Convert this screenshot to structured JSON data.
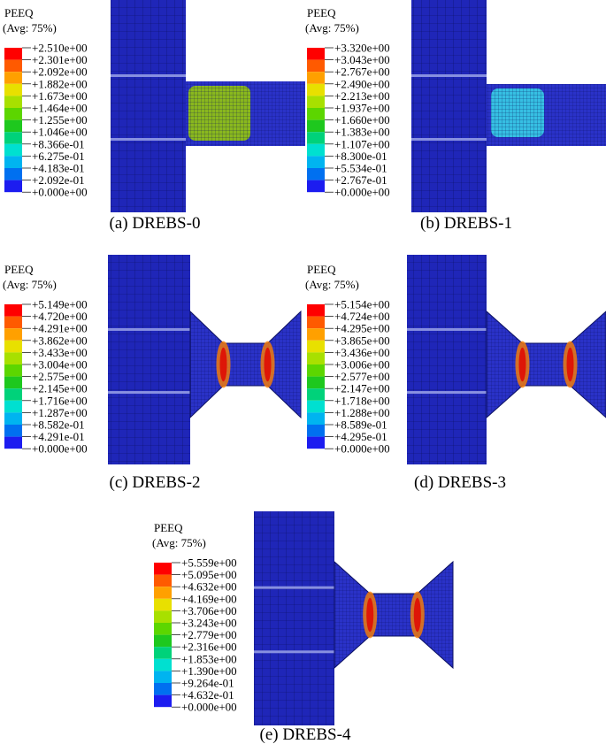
{
  "panels": [
    {
      "legend_title": "PEEQ",
      "legend_subtitle": "(Avg: 75%)",
      "caption": "(a) DREBS-0",
      "legend_labels": [
        "+2.510e+00",
        "+2.301e+00",
        "+2.092e+00",
        "+1.882e+00",
        "+1.673e+00",
        "+1.464e+00",
        "+1.255e+00",
        "+1.046e+00",
        "+8.366e-01",
        "+6.275e-01",
        "+4.183e-01",
        "+2.092e-01",
        "+0.000e+00"
      ]
    },
    {
      "legend_title": "PEEQ",
      "legend_subtitle": "(Avg: 75%)",
      "caption": "(b) DREBS-1",
      "legend_labels": [
        "+3.320e+00",
        "+3.043e+00",
        "+2.767e+00",
        "+2.490e+00",
        "+2.213e+00",
        "+1.937e+00",
        "+1.660e+00",
        "+1.383e+00",
        "+1.107e+00",
        "+8.300e-01",
        "+5.534e-01",
        "+2.767e-01",
        "+0.000e+00"
      ]
    },
    {
      "legend_title": "PEEQ",
      "legend_subtitle": "(Avg: 75%)",
      "caption": "(c) DREBS-2",
      "legend_labels": [
        "+5.149e+00",
        "+4.720e+00",
        "+4.291e+00",
        "+3.862e+00",
        "+3.433e+00",
        "+3.004e+00",
        "+2.575e+00",
        "+2.145e+00",
        "+1.716e+00",
        "+1.287e+00",
        "+8.582e-01",
        "+4.291e-01",
        "+0.000e+00"
      ]
    },
    {
      "legend_title": "PEEQ",
      "legend_subtitle": "(Avg: 75%)",
      "caption": "(d) DREBS-3",
      "legend_labels": [
        "+5.154e+00",
        "+4.724e+00",
        "+4.295e+00",
        "+3.865e+00",
        "+3.436e+00",
        "+3.006e+00",
        "+2.577e+00",
        "+2.147e+00",
        "+1.718e+00",
        "+1.288e+00",
        "+8.589e-01",
        "+4.295e-01",
        "+0.000e+00"
      ]
    },
    {
      "legend_title": "PEEQ",
      "legend_subtitle": "(Avg: 75%)",
      "caption": "(e) DREBS-4",
      "legend_labels": [
        "+5.559e+00",
        "+5.095e+00",
        "+4.632e+00",
        "+4.169e+00",
        "+3.706e+00",
        "+3.243e+00",
        "+2.779e+00",
        "+2.316e+00",
        "+1.853e+00",
        "+1.390e+00",
        "+9.264e-01",
        "+4.632e-01",
        "+0.000e+00"
      ]
    }
  ]
}
